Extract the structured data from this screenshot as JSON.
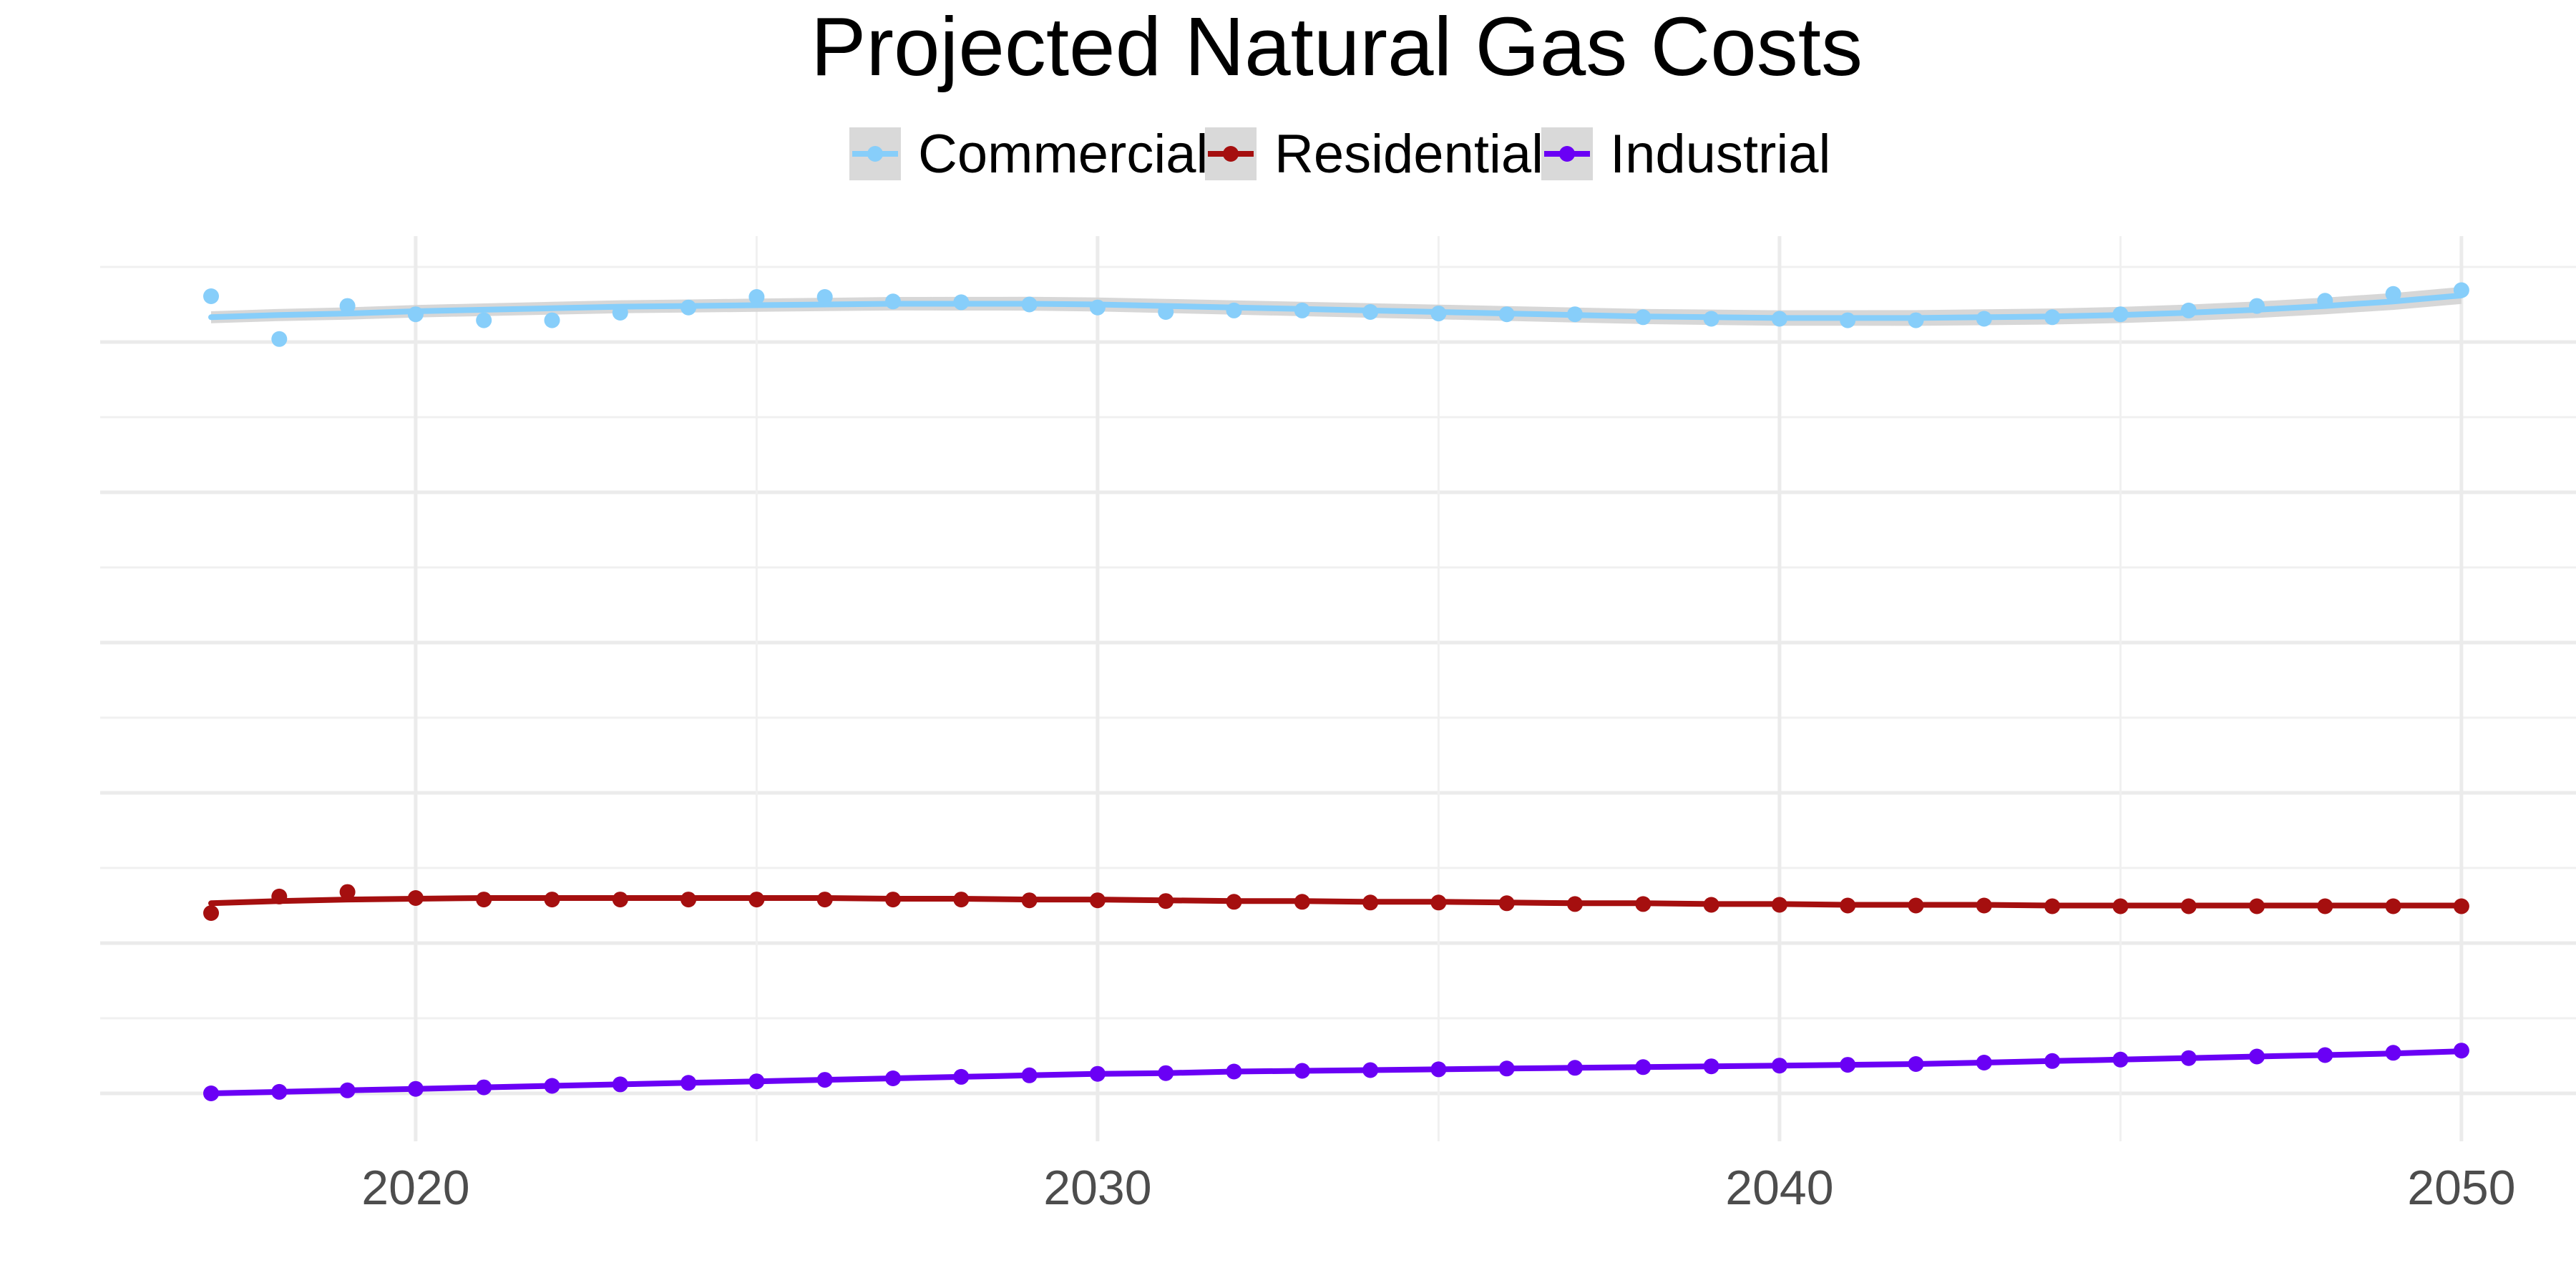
{
  "chart_data": {
    "type": "line",
    "title": "Projected Natural Gas Costs",
    "xlabel": "",
    "ylabel": "",
    "xlim": [
      2016,
      2051.6
    ],
    "ylim": [
      -0.6,
      11.6
    ],
    "x_ticks": [
      2020,
      2030,
      2040,
      2050
    ],
    "x_tick_labels": [
      "2020",
      "2030",
      "2040",
      "2050"
    ],
    "x_minor_ticks": [
      2025,
      2035,
      2045
    ],
    "y_gridlines": [
      0,
      2,
      4,
      6,
      8,
      10
    ],
    "y_minor_gridlines": [
      1,
      3,
      5,
      7,
      9,
      11
    ],
    "grid": true,
    "legend_position": "top",
    "x": [
      2017,
      2018,
      2019,
      2020,
      2021,
      2022,
      2023,
      2024,
      2025,
      2026,
      2027,
      2028,
      2029,
      2030,
      2031,
      2032,
      2033,
      2034,
      2035,
      2036,
      2037,
      2038,
      2039,
      2040,
      2041,
      2042,
      2043,
      2044,
      2045,
      2046,
      2047,
      2048,
      2049,
      2050
    ],
    "series": [
      {
        "name": "Commercial",
        "color": "#87cefa",
        "band_color": "#d3d3d3",
        "values": [
          10.61,
          10.04,
          10.48,
          10.37,
          10.29,
          10.29,
          10.39,
          10.46,
          10.6,
          10.6,
          10.54,
          10.53,
          10.5,
          10.46,
          10.4,
          10.42,
          10.42,
          10.4,
          10.38,
          10.37,
          10.37,
          10.33,
          10.31,
          10.31,
          10.29,
          10.29,
          10.31,
          10.33,
          10.37,
          10.42,
          10.48,
          10.55,
          10.64,
          10.69
        ],
        "trend": [
          10.33,
          10.36,
          10.38,
          10.41,
          10.43,
          10.45,
          10.47,
          10.48,
          10.49,
          10.5,
          10.51,
          10.51,
          10.51,
          10.5,
          10.48,
          10.46,
          10.44,
          10.42,
          10.4,
          10.38,
          10.36,
          10.34,
          10.33,
          10.32,
          10.32,
          10.32,
          10.33,
          10.34,
          10.36,
          10.39,
          10.43,
          10.48,
          10.54,
          10.62
        ]
      },
      {
        "name": "Residential",
        "color": "#a50f0f",
        "values": [
          2.4,
          2.62,
          2.68,
          2.6,
          2.58,
          2.58,
          2.58,
          2.58,
          2.58,
          2.58,
          2.58,
          2.58,
          2.57,
          2.57,
          2.56,
          2.55,
          2.55,
          2.54,
          2.54,
          2.53,
          2.52,
          2.52,
          2.51,
          2.51,
          2.5,
          2.5,
          2.5,
          2.49,
          2.49,
          2.49,
          2.49,
          2.49,
          2.49,
          2.49
        ],
        "trend": [
          2.53,
          2.56,
          2.58,
          2.59,
          2.6,
          2.6,
          2.6,
          2.6,
          2.6,
          2.6,
          2.59,
          2.59,
          2.58,
          2.58,
          2.57,
          2.56,
          2.56,
          2.55,
          2.55,
          2.54,
          2.53,
          2.53,
          2.52,
          2.52,
          2.51,
          2.51,
          2.51,
          2.5,
          2.5,
          2.5,
          2.5,
          2.5,
          2.5,
          2.5
        ]
      },
      {
        "name": "Industrial",
        "color": "#6a00f5",
        "values": [
          0.0,
          0.02,
          0.04,
          0.06,
          0.08,
          0.1,
          0.12,
          0.14,
          0.16,
          0.18,
          0.2,
          0.22,
          0.24,
          0.26,
          0.27,
          0.29,
          0.3,
          0.31,
          0.32,
          0.33,
          0.34,
          0.35,
          0.36,
          0.37,
          0.38,
          0.39,
          0.41,
          0.43,
          0.45,
          0.47,
          0.49,
          0.51,
          0.54,
          0.57
        ],
        "trend": [
          0.0,
          0.02,
          0.04,
          0.06,
          0.08,
          0.1,
          0.12,
          0.14,
          0.16,
          0.18,
          0.2,
          0.22,
          0.24,
          0.26,
          0.27,
          0.29,
          0.3,
          0.31,
          0.32,
          0.33,
          0.34,
          0.35,
          0.36,
          0.37,
          0.38,
          0.39,
          0.41,
          0.43,
          0.45,
          0.47,
          0.49,
          0.51,
          0.53,
          0.56
        ]
      }
    ]
  }
}
